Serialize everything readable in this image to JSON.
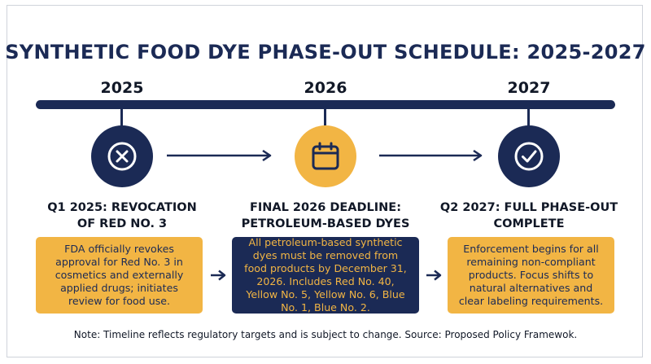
{
  "title": "SYNTHETIC FOOD DYE PHASE-OUT SCHEDULE: 2025-2027",
  "years": [
    "2025",
    "2026",
    "2027"
  ],
  "milestones": [
    {
      "icon": "x-circle-icon",
      "heading_lines": [
        "Q1 2025: REVOCATION",
        "OF RED NO. 3"
      ],
      "description": "FDA officially revokes approval for Red No. 3 in cosmetics and externally applied drugs; initiates review for food use."
    },
    {
      "icon": "calendar-icon",
      "heading_lines": [
        "FINAL 2026 DEADLINE:",
        "PETROLEUM-BASED DYES"
      ],
      "description": "All petroleum-based synthetic dyes must be removed from food products by December 31, 2026. Includes Red No. 40, Yellow No. 5, Yellow No. 6, Blue No. 1, Blue No. 2."
    },
    {
      "icon": "checkmark-icon",
      "heading_lines": [
        "Q2 2027: FULL PHASE-OUT",
        "COMPLETE"
      ],
      "description": "Enforcement begins for all remaining non-compliant products. Focus shifts to natural alternatives and clear labeling requirements."
    }
  ],
  "note": "Note: Timeline reflects regulatory targets and is subject to change. Source: Proposed Policy Framewok.",
  "colors": {
    "navy": "#1b2a55",
    "gold": "#f2b544"
  }
}
